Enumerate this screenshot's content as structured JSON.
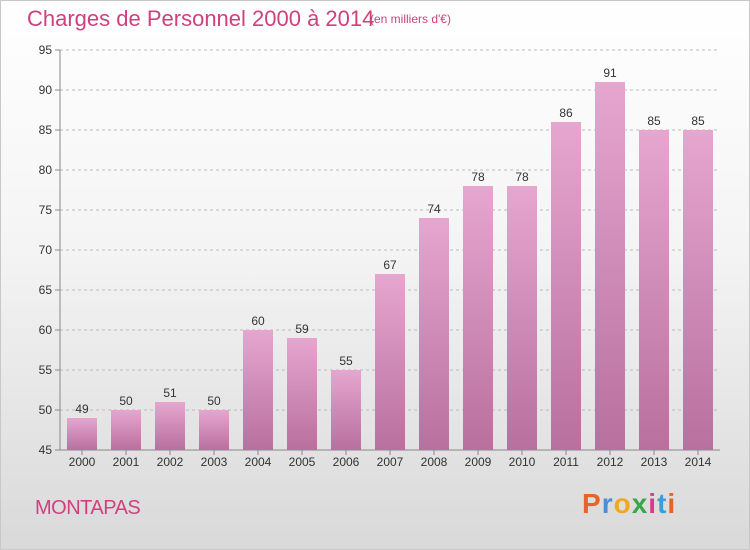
{
  "header": {
    "title": "Charges de Personnel 2000 à 2014",
    "subtitle": "(en milliers d'€)"
  },
  "footer": {
    "commune": "MONTAPAS",
    "logo_text": "Proxiti",
    "logo_colors": [
      "#e8632a",
      "#4a8fd4",
      "#f0a81e",
      "#3aa64a",
      "#d53d8b",
      "#3a9fd8",
      "#e8632a"
    ]
  },
  "colors": {
    "accent": "#d0407e",
    "bar_top": "#e6a6cf",
    "bar_bottom": "#b8709f",
    "grid": "#bbbbbb"
  },
  "chart_data": {
    "type": "bar",
    "title": "Charges de Personnel 2000 à 2014",
    "subtitle": "(en milliers d'€)",
    "xlabel": "",
    "ylabel": "",
    "categories": [
      "2000",
      "2001",
      "2002",
      "2003",
      "2004",
      "2005",
      "2006",
      "2007",
      "2008",
      "2009",
      "2010",
      "2011",
      "2012",
      "2013",
      "2014"
    ],
    "values": [
      49,
      50,
      51,
      50,
      60,
      59,
      55,
      67,
      74,
      78,
      78,
      86,
      91,
      85,
      85
    ],
    "ylim": [
      45,
      95
    ],
    "yticks": [
      45,
      50,
      55,
      60,
      65,
      70,
      75,
      80,
      85,
      90,
      95
    ],
    "grid": true,
    "data_labels": true
  }
}
